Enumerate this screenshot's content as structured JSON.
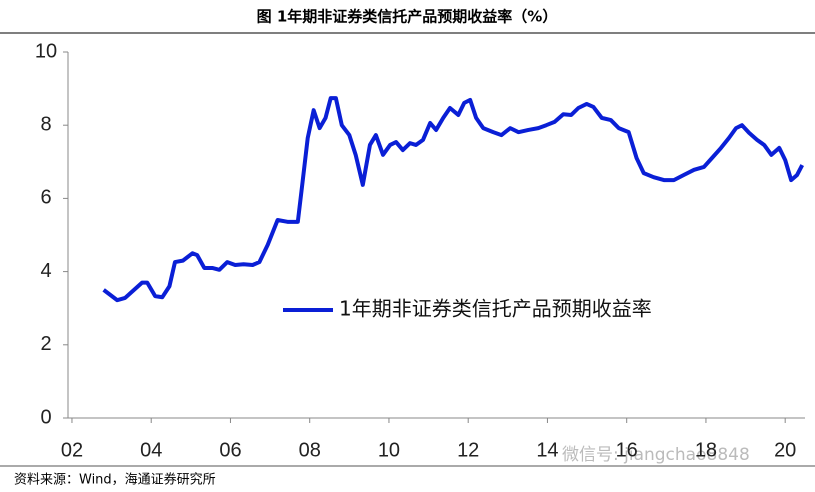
{
  "chart_data": {
    "type": "line",
    "title": "图 1年期非证券类信托产品预期收益率（%）",
    "source": "资料来源：Wind，海通证券研究所",
    "watermark": "微信号: jiangchao8848",
    "xlim": [
      2001.9,
      2020.5
    ],
    "xticks": [
      {
        "value": 2002,
        "label": "02"
      },
      {
        "value": 2004,
        "label": "04"
      },
      {
        "value": 2006,
        "label": "06"
      },
      {
        "value": 2008,
        "label": "08"
      },
      {
        "value": 2010,
        "label": "10"
      },
      {
        "value": 2012,
        "label": "12"
      },
      {
        "value": 2014,
        "label": "14"
      },
      {
        "value": 2016,
        "label": "16"
      },
      {
        "value": 2018,
        "label": "18"
      },
      {
        "value": 2020,
        "label": "20"
      }
    ],
    "ylim": [
      0,
      10
    ],
    "yticks": [
      0,
      2,
      4,
      6,
      8,
      10
    ],
    "legend_position": "right",
    "series": [
      {
        "name": "1年期非证券类信托产品预期收益率",
        "color": "#0a1fd6",
        "x": [
          2002.8,
          2003.14,
          2003.34,
          2003.77,
          2003.9,
          2004.1,
          2004.28,
          2004.46,
          2004.6,
          2004.8,
          2005.04,
          2005.16,
          2005.34,
          2005.54,
          2005.72,
          2005.92,
          2006.12,
          2006.33,
          2006.56,
          2006.73,
          2006.94,
          2007.19,
          2007.44,
          2007.7,
          2007.82,
          2007.95,
          2008.1,
          2008.25,
          2008.4,
          2008.53,
          2008.66,
          2008.81,
          2009.0,
          2009.16,
          2009.34,
          2009.52,
          2009.67,
          2009.85,
          2010.03,
          2010.18,
          2010.35,
          2010.53,
          2010.68,
          2010.86,
          2011.04,
          2011.19,
          2011.37,
          2011.54,
          2011.75,
          2011.9,
          2012.05,
          2012.2,
          2012.38,
          2012.63,
          2012.84,
          2013.06,
          2013.27,
          2013.52,
          2013.77,
          2013.97,
          2014.18,
          2014.4,
          2014.6,
          2014.78,
          2014.99,
          2015.16,
          2015.37,
          2015.6,
          2015.8,
          2016.05,
          2016.25,
          2016.43,
          2016.68,
          2016.94,
          2017.19,
          2017.44,
          2017.7,
          2017.95,
          2018.15,
          2018.38,
          2018.58,
          2018.76,
          2018.91,
          2019.09,
          2019.29,
          2019.47,
          2019.65,
          2019.85,
          2020.0,
          2020.15,
          2020.3,
          2020.43
        ],
        "values": [
          3.5,
          3.22,
          3.28,
          3.7,
          3.7,
          3.33,
          3.3,
          3.6,
          4.26,
          4.3,
          4.5,
          4.45,
          4.1,
          4.1,
          4.05,
          4.26,
          4.18,
          4.2,
          4.18,
          4.26,
          4.73,
          5.41,
          5.36,
          5.36,
          6.45,
          7.65,
          8.41,
          7.92,
          8.2,
          8.74,
          8.74,
          8.0,
          7.73,
          7.19,
          6.37,
          7.46,
          7.73,
          7.19,
          7.46,
          7.54,
          7.32,
          7.51,
          7.46,
          7.6,
          8.06,
          7.87,
          8.2,
          8.47,
          8.28,
          8.61,
          8.69,
          8.2,
          7.92,
          7.81,
          7.73,
          7.92,
          7.81,
          7.87,
          7.92,
          8.0,
          8.09,
          8.3,
          8.28,
          8.47,
          8.58,
          8.5,
          8.2,
          8.14,
          7.92,
          7.81,
          7.1,
          6.69,
          6.58,
          6.5,
          6.5,
          6.64,
          6.78,
          6.86,
          7.1,
          7.38,
          7.65,
          7.92,
          8.0,
          7.79,
          7.6,
          7.46,
          7.19,
          7.38,
          7.05,
          6.5,
          6.64,
          6.91
        ]
      }
    ]
  }
}
